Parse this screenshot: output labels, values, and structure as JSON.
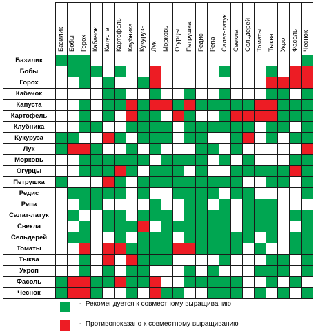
{
  "table": {
    "plants": [
      "Базилик",
      "Бобы",
      "Горох",
      "Кабачок",
      "Капуста",
      "Картофель",
      "Клубника",
      "Кукуруза",
      "Лук",
      "Морковь",
      "Огурцы",
      "Петрушка",
      "Редис",
      "Репа",
      "Салат-латук",
      "Свекла",
      "Сельдерей",
      "Томаты",
      "Тыква",
      "Укроп",
      "Фасоль",
      "Чеснок"
    ],
    "matrix": [
      "GGG..................G",
      ".GGG.G..R.....G...G.RR",
      "..G.G..GR.........RRRR",
      "....GG..G..G..G...GG.G",
      "..G.GGRGRRGRGGGGGRRGGG",
      "..G.G.RGG.RG..GRRRRGGG",
      "..GG..GGGG.GGGGGG.GG.G",
      "GG..RG.GGG.GG..GR.G.GG",
      "GRRG..G.G...GG.G.....R",
      "..GGGGGG.GGGG.G.G...GG",
      "..GGGRG.GGG.G..GGGGGRG",
      "G...RG.GGGGGGGGG..GG.G",
      ".GGGGG.G..GGGG.GG....G",
      "..GG....G..GG.G.GGG...",
      ".G..GG.GGG.GGGG.GGG.GG",
      "..G.GGGR.GGGGGG.GGG..G",
      ".GG..G.GGG.GGGGGG.G.GG",
      "..R.RRGGGGRRGGGG.G..GG",
      "..G.R.RGGG....G...GG.G",
      "..G.G.GG...G.G...GGG.G",
      "GRRGGRGGR..GGGGG..G.G.",
      "GRRG..G.RGG..GGG.G.G.G"
    ]
  },
  "colors": {
    "recommended": "#00a651",
    "contraindicated": "#ed1c24"
  },
  "legend": {
    "recommended": "Рекомендуется к совместному выращиванию",
    "contraindicated": "Противопоказано к совместному выращиванию"
  }
}
